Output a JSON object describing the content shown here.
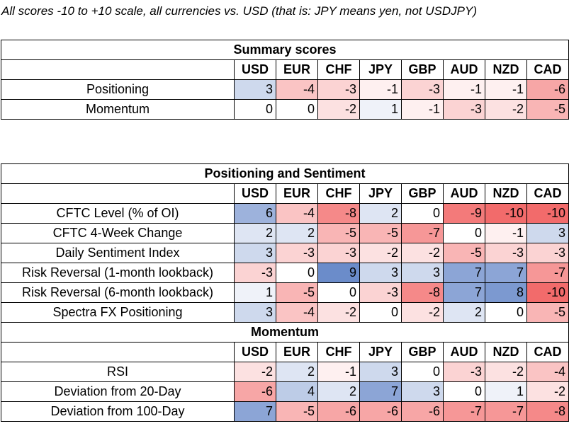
{
  "caption": "All scores -10 to +10 scale, all currencies vs. USD (that is: JPY means yen, not USDJPY)",
  "currencies": [
    "USD",
    "EUR",
    "CHF",
    "JPY",
    "GBP",
    "AUD",
    "NZD",
    "CAD"
  ],
  "colors": {
    "positive": "#5B7FC4",
    "negative": "#F26B6B",
    "neutral": "#FFFFFF"
  },
  "summary": {
    "title": "Summary scores",
    "rows": [
      {
        "label": "Positioning",
        "values": [
          3,
          -4,
          -3,
          -1,
          -3,
          -1,
          -1,
          -6
        ]
      },
      {
        "label": "Momentum",
        "values": [
          0,
          0,
          -2,
          1,
          -1,
          -3,
          -2,
          -5
        ]
      }
    ]
  },
  "positioning": {
    "title": "Positioning and Sentiment",
    "rows": [
      {
        "label": "CFTC Level (% of OI)",
        "values": [
          6,
          -4,
          -8,
          2,
          0,
          -9,
          -10,
          -10
        ]
      },
      {
        "label": "CFTC 4-Week Change",
        "values": [
          2,
          2,
          -5,
          -5,
          -7,
          0,
          -1,
          3
        ]
      },
      {
        "label": "Daily Sentiment Index",
        "values": [
          3,
          -3,
          -3,
          -2,
          -2,
          -5,
          -3,
          -3
        ]
      },
      {
        "label": "Risk Reversal (1-month lookback)",
        "values": [
          -3,
          0,
          9,
          3,
          3,
          7,
          7,
          -7
        ]
      },
      {
        "label": "Risk Reversal (6-month lookback)",
        "values": [
          1,
          -5,
          0,
          -3,
          -8,
          7,
          8,
          -10
        ]
      },
      {
        "label": "Spectra FX Positioning",
        "values": [
          3,
          -4,
          -2,
          0,
          -2,
          2,
          0,
          -5
        ]
      }
    ]
  },
  "momentum": {
    "title": "Momentum",
    "rows": [
      {
        "label": "RSI",
        "values": [
          -2,
          2,
          -1,
          3,
          0,
          -3,
          -2,
          -4
        ]
      },
      {
        "label": "Deviation from 20-Day",
        "values": [
          -6,
          4,
          2,
          7,
          3,
          0,
          1,
          -2
        ]
      },
      {
        "label": "Deviation from 100-Day",
        "values": [
          7,
          -5,
          -6,
          -6,
          -6,
          -7,
          -7,
          -8
        ]
      }
    ]
  }
}
